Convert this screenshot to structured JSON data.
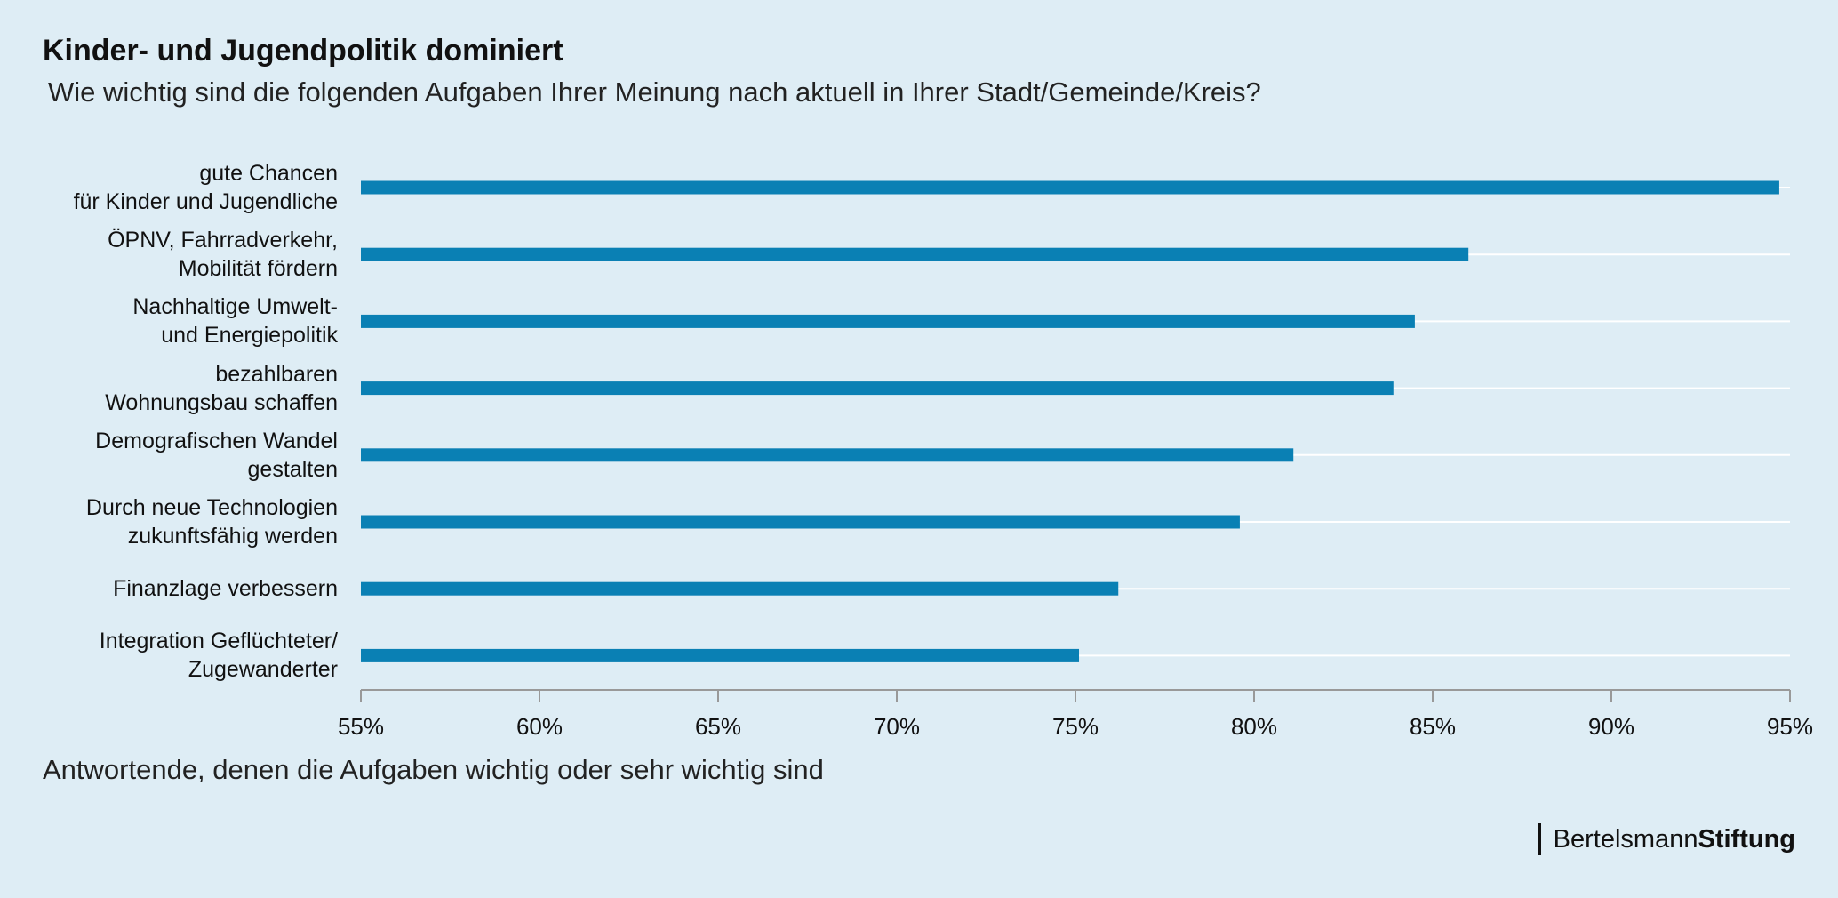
{
  "chart_data": {
    "type": "barh",
    "title": "Kinder- und Jugendpolitik dominiert",
    "subtitle": "Wie wichtig sind die folgenden Aufgaben Ihrer Meinung nach aktuell in Ihrer Stadt/Gemeinde/Kreis?",
    "x_label": "Antwortende, denen die Aufgaben wichtig oder sehr wichtig sind",
    "categories": [
      "gute Chancen\nfür Kinder und Jugendliche",
      "ÖPNV, Fahrradverkehr,\nMobilität fördern",
      "Nachhaltige Umwelt-\nund Energiepolitik",
      "bezahlbaren\nWohnungsbau schaffen",
      "Demografischen Wandel\ngestalten",
      "Durch neue Technologien\nzukunftsfähig werden",
      "Finanzlage verbessern",
      "Integration Geflüchteter/\nZugewanderter"
    ],
    "values": [
      94.7,
      86.0,
      84.5,
      83.9,
      81.1,
      79.6,
      76.2,
      75.1
    ],
    "color": "#0a80b4",
    "xlim": [
      55,
      95
    ],
    "xticks": [
      {
        "value": 55,
        "label": "55%"
      },
      {
        "value": 60,
        "label": "60%"
      },
      {
        "value": 65,
        "label": "65%"
      },
      {
        "value": 70,
        "label": "70%"
      },
      {
        "value": 75,
        "label": "75%"
      },
      {
        "value": 80,
        "label": "80%"
      },
      {
        "value": 85,
        "label": "85%"
      },
      {
        "value": 90,
        "label": "90%"
      },
      {
        "value": 95,
        "label": "95%"
      }
    ],
    "grid": true,
    "logo": {
      "regular": "Bertelsmann",
      "bold": "Stiftung"
    }
  }
}
